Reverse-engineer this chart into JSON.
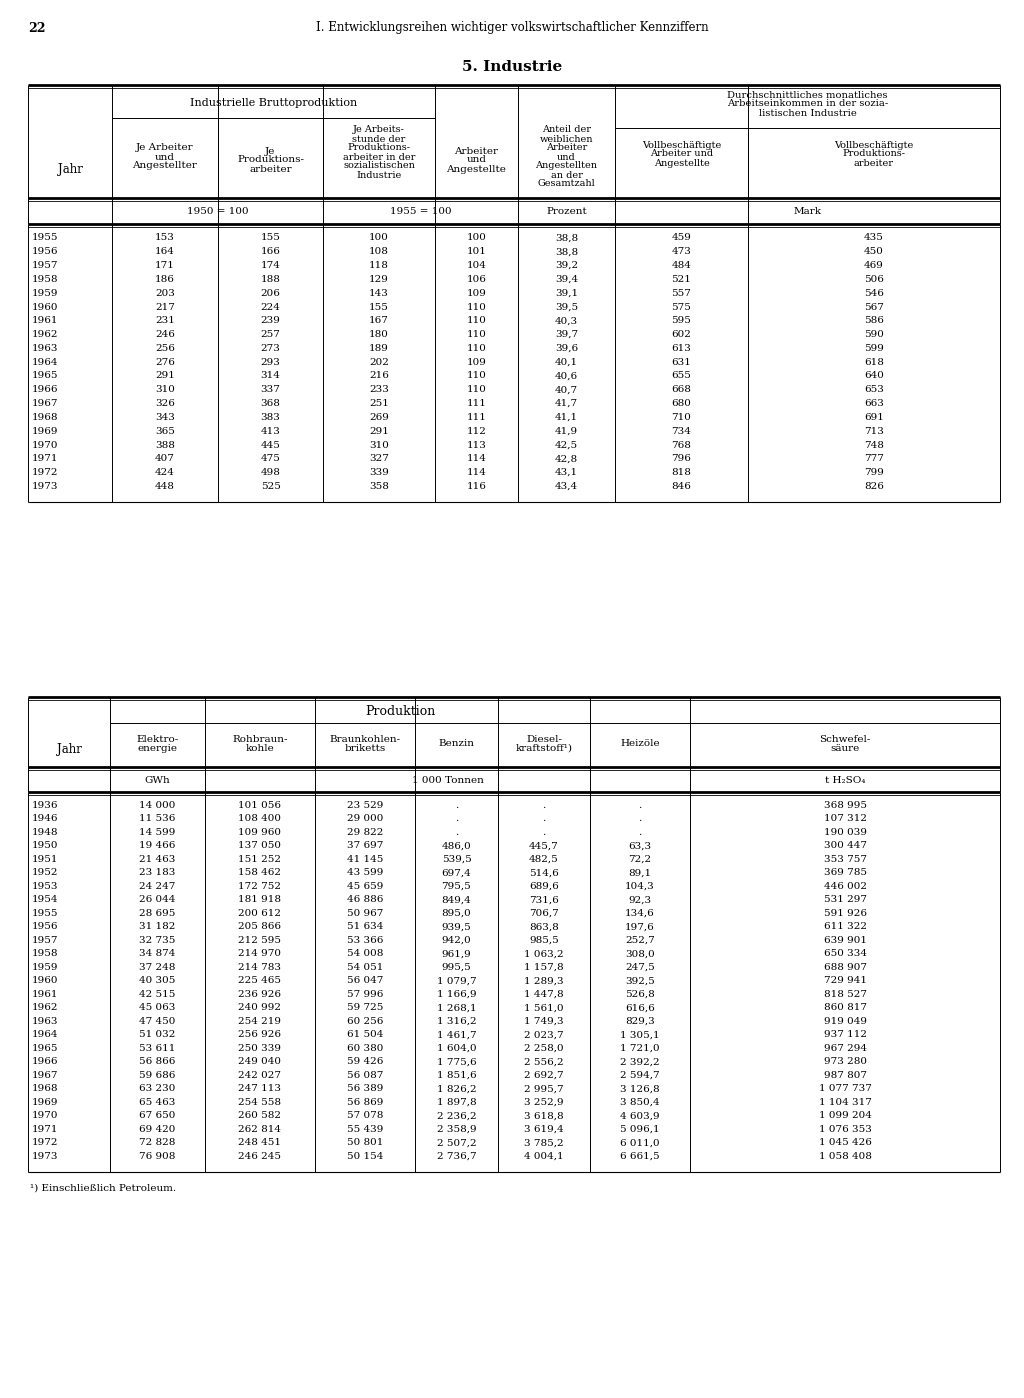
{
  "page_number": "22",
  "page_header": "I. Entwicklungsreihen wichtiger volkswirtschaftlicher Kennziffern",
  "section_title": "5. Industrie",
  "table1": {
    "rows": [
      [
        "1955",
        "153",
        "155",
        "100",
        "100",
        "38,8",
        "459",
        "435"
      ],
      [
        "1956",
        "164",
        "166",
        "108",
        "101",
        "38,8",
        "473",
        "450"
      ],
      [
        "1957",
        "171",
        "174",
        "118",
        "104",
        "39,2",
        "484",
        "469"
      ],
      [
        "1958",
        "186",
        "188",
        "129",
        "106",
        "39,4",
        "521",
        "506"
      ],
      [
        "1959",
        "203",
        "206",
        "143",
        "109",
        "39,1",
        "557",
        "546"
      ],
      [
        "1960",
        "217",
        "224",
        "155",
        "110",
        "39,5",
        "575",
        "567"
      ],
      [
        "1961",
        "231",
        "239",
        "167",
        "110",
        "40,3",
        "595",
        "586"
      ],
      [
        "1962",
        "246",
        "257",
        "180",
        "110",
        "39,7",
        "602",
        "590"
      ],
      [
        "1963",
        "256",
        "273",
        "189",
        "110",
        "39,6",
        "613",
        "599"
      ],
      [
        "1964",
        "276",
        "293",
        "202",
        "109",
        "40,1",
        "631",
        "618"
      ],
      [
        "1965",
        "291",
        "314",
        "216",
        "110",
        "40,6",
        "655",
        "640"
      ],
      [
        "1966",
        "310",
        "337",
        "233",
        "110",
        "40,7",
        "668",
        "653"
      ],
      [
        "1967",
        "326",
        "368",
        "251",
        "111",
        "41,7",
        "680",
        "663"
      ],
      [
        "1968",
        "343",
        "383",
        "269",
        "111",
        "41,1",
        "710",
        "691"
      ],
      [
        "1969",
        "365",
        "413",
        "291",
        "112",
        "41,9",
        "734",
        "713"
      ],
      [
        "1970",
        "388",
        "445",
        "310",
        "113",
        "42,5",
        "768",
        "748"
      ],
      [
        "1971",
        "407",
        "475",
        "327",
        "114",
        "42,8",
        "796",
        "777"
      ],
      [
        "1972",
        "424",
        "498",
        "339",
        "114",
        "43,1",
        "818",
        "799"
      ],
      [
        "1973",
        "448",
        "525",
        "358",
        "116",
        "43,4",
        "846",
        "826"
      ]
    ]
  },
  "table2": {
    "rows": [
      [
        "1936",
        "14 000",
        "101 056",
        "23 529",
        ".",
        ".",
        ".",
        "368 995"
      ],
      [
        "1946",
        "11 536",
        "108 400",
        "29 000",
        ".",
        ".",
        ".",
        "107 312"
      ],
      [
        "1948",
        "14 599",
        "109 960",
        "29 822",
        ".",
        ".",
        ".",
        "190 039"
      ],
      [
        "1950",
        "19 466",
        "137 050",
        "37 697",
        "486,0",
        "445,7",
        "63,3",
        "300 447"
      ],
      [
        "1951",
        "21 463",
        "151 252",
        "41 145",
        "539,5",
        "482,5",
        "72,2",
        "353 757"
      ],
      [
        "1952",
        "23 183",
        "158 462",
        "43 599",
        "697,4",
        "514,6",
        "89,1",
        "369 785"
      ],
      [
        "1953",
        "24 247",
        "172 752",
        "45 659",
        "795,5",
        "689,6",
        "104,3",
        "446 002"
      ],
      [
        "1954",
        "26 044",
        "181 918",
        "46 886",
        "849,4",
        "731,6",
        "92,3",
        "531 297"
      ],
      [
        "1955",
        "28 695",
        "200 612",
        "50 967",
        "895,0",
        "706,7",
        "134,6",
        "591 926"
      ],
      [
        "1956",
        "31 182",
        "205 866",
        "51 634",
        "939,5",
        "863,8",
        "197,6",
        "611 322"
      ],
      [
        "1957",
        "32 735",
        "212 595",
        "53 366",
        "942,0",
        "985,5",
        "252,7",
        "639 901"
      ],
      [
        "1958",
        "34 874",
        "214 970",
        "54 008",
        "961,9",
        "1 063,2",
        "308,0",
        "650 334"
      ],
      [
        "1959",
        "37 248",
        "214 783",
        "54 051",
        "995,5",
        "1 157,8",
        "247,5",
        "688 907"
      ],
      [
        "1960",
        "40 305",
        "225 465",
        "56 047",
        "1 079,7",
        "1 289,3",
        "392,5",
        "729 941"
      ],
      [
        "1961",
        "42 515",
        "236 926",
        "57 996",
        "1 166,9",
        "1 447,8",
        "526,8",
        "818 527"
      ],
      [
        "1962",
        "45 063",
        "240 992",
        "59 725",
        "1 268,1",
        "1 561,0",
        "616,6",
        "860 817"
      ],
      [
        "1963",
        "47 450",
        "254 219",
        "60 256",
        "1 316,2",
        "1 749,3",
        "829,3",
        "919 049"
      ],
      [
        "1964",
        "51 032",
        "256 926",
        "61 504",
        "1 461,7",
        "2 023,7",
        "1 305,1",
        "937 112"
      ],
      [
        "1965",
        "53 611",
        "250 339",
        "60 380",
        "1 604,0",
        "2 258,0",
        "1 721,0",
        "967 294"
      ],
      [
        "1966",
        "56 866",
        "249 040",
        "59 426",
        "1 775,6",
        "2 556,2",
        "2 392,2",
        "973 280"
      ],
      [
        "1967",
        "59 686",
        "242 027",
        "56 087",
        "1 851,6",
        "2 692,7",
        "2 594,7",
        "987 807"
      ],
      [
        "1968",
        "63 230",
        "247 113",
        "56 389",
        "1 826,2",
        "2 995,7",
        "3 126,8",
        "1 077 737"
      ],
      [
        "1969",
        "65 463",
        "254 558",
        "56 869",
        "1 897,8",
        "3 252,9",
        "3 850,4",
        "1 104 317"
      ],
      [
        "1970",
        "67 650",
        "260 582",
        "57 078",
        "2 236,2",
        "3 618,8",
        "4 603,9",
        "1 099 204"
      ],
      [
        "1971",
        "69 420",
        "262 814",
        "55 439",
        "2 358,9",
        "3 619,4",
        "5 096,1",
        "1 076 353"
      ],
      [
        "1972",
        "72 828",
        "248 451",
        "50 801",
        "2 507,2",
        "3 785,2",
        "6 011,0",
        "1 045 426"
      ],
      [
        "1973",
        "76 908",
        "246 245",
        "50 154",
        "2 736,7",
        "4 004,1",
        "6 661,5",
        "1 058 408"
      ]
    ],
    "footnote": "¹) Einschließlich Petroleum."
  }
}
